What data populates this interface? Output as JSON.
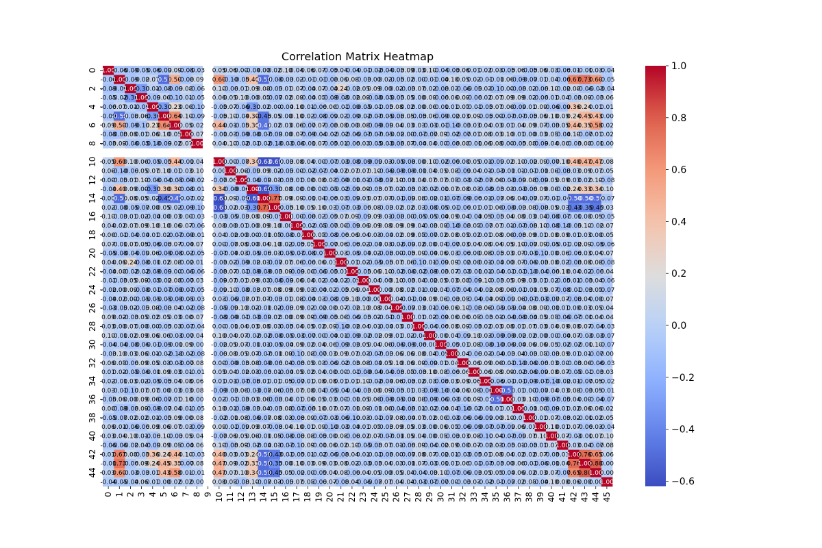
{
  "chart_data": {
    "type": "heatmap",
    "title": "Correlation Matrix Heatmap",
    "xlabel": "",
    "ylabel": "",
    "n": 46,
    "x_tick_labels": [
      "0",
      "1",
      "2",
      "3",
      "4",
      "5",
      "6",
      "7",
      "8",
      "9",
      "10",
      "11",
      "12",
      "13",
      "14",
      "15",
      "16",
      "17",
      "18",
      "19",
      "20",
      "21",
      "22",
      "23",
      "24",
      "25",
      "26",
      "27",
      "28",
      "29",
      "30",
      "31",
      "32",
      "33",
      "34",
      "35",
      "36",
      "37",
      "38",
      "39",
      "40",
      "41",
      "42",
      "43",
      "44",
      "45"
    ],
    "y_tick_labels": [
      "0",
      "2",
      "4",
      "6",
      "8",
      "10",
      "12",
      "14",
      "16",
      "18",
      "20",
      "22",
      "24",
      "26",
      "28",
      "30",
      "32",
      "34",
      "36",
      "38",
      "40",
      "42",
      "44"
    ],
    "y_tick_indices": [
      0,
      2,
      4,
      6,
      8,
      10,
      12,
      14,
      16,
      18,
      20,
      22,
      24,
      26,
      28,
      30,
      32,
      34,
      36,
      38,
      40,
      42,
      44
    ],
    "colormap": "coolwarm",
    "vmin": -0.62,
    "vmax": 1.0,
    "colorbar_ticks": [
      "1.0",
      "0.8",
      "0.6",
      "0.4",
      "0.2",
      "0.0",
      "−0.2",
      "−0.4",
      "−0.6"
    ],
    "colorbar_tick_values": [
      1.0,
      0.8,
      0.6,
      0.4,
      0.2,
      0.0,
      -0.2,
      -0.4,
      -0.6
    ],
    "empty_index": 9,
    "annotated": true,
    "value_decimals": 2,
    "strong_pairs": [
      [
        1,
        10,
        0.6
      ],
      [
        1,
        13,
        0.4
      ],
      [
        1,
        14,
        -0.5
      ],
      [
        1,
        42,
        0.67
      ],
      [
        1,
        43,
        0.73
      ],
      [
        1,
        44,
        0.6
      ],
      [
        1,
        5,
        -0.5
      ],
      [
        1,
        6,
        0.5
      ],
      [
        2,
        3,
        -0.3
      ],
      [
        2,
        21,
        0.24
      ],
      [
        4,
        5,
        -0.3
      ],
      [
        4,
        6,
        0.23
      ],
      [
        4,
        13,
        -0.3
      ],
      [
        4,
        42,
        0.36
      ],
      [
        4,
        43,
        0.24
      ],
      [
        5,
        6,
        0.64
      ],
      [
        5,
        7,
        0.1
      ],
      [
        5,
        14,
        -0.45
      ],
      [
        5,
        42,
        0.24
      ],
      [
        5,
        43,
        0.45
      ],
      [
        5,
        44,
        0.43
      ],
      [
        5,
        13,
        0.3
      ],
      [
        6,
        10,
        0.44
      ],
      [
        6,
        14,
        -0.47
      ],
      [
        6,
        42,
        0.44
      ],
      [
        6,
        43,
        0.35
      ],
      [
        6,
        44,
        0.58
      ],
      [
        6,
        13,
        0.3
      ],
      [
        10,
        13,
        0.34
      ],
      [
        10,
        14,
        -0.63
      ],
      [
        10,
        15,
        -0.6
      ],
      [
        10,
        42,
        0.4
      ],
      [
        10,
        43,
        0.47
      ],
      [
        10,
        44,
        0.47
      ],
      [
        13,
        14,
        -0.6
      ],
      [
        13,
        15,
        -0.3
      ],
      [
        13,
        42,
        0.24
      ],
      [
        13,
        43,
        0.33
      ],
      [
        13,
        44,
        0.34
      ],
      [
        14,
        15,
        0.77
      ],
      [
        14,
        42,
        -0.5
      ],
      [
        14,
        43,
        -0.5
      ],
      [
        14,
        44,
        -0.5
      ],
      [
        15,
        42,
        -0.43
      ],
      [
        15,
        43,
        -0.35
      ],
      [
        15,
        44,
        -0.45
      ],
      [
        35,
        36,
        -0.5
      ],
      [
        42,
        43,
        0.76
      ],
      [
        42,
        44,
        0.65
      ],
      [
        43,
        44,
        0.8
      ]
    ]
  }
}
